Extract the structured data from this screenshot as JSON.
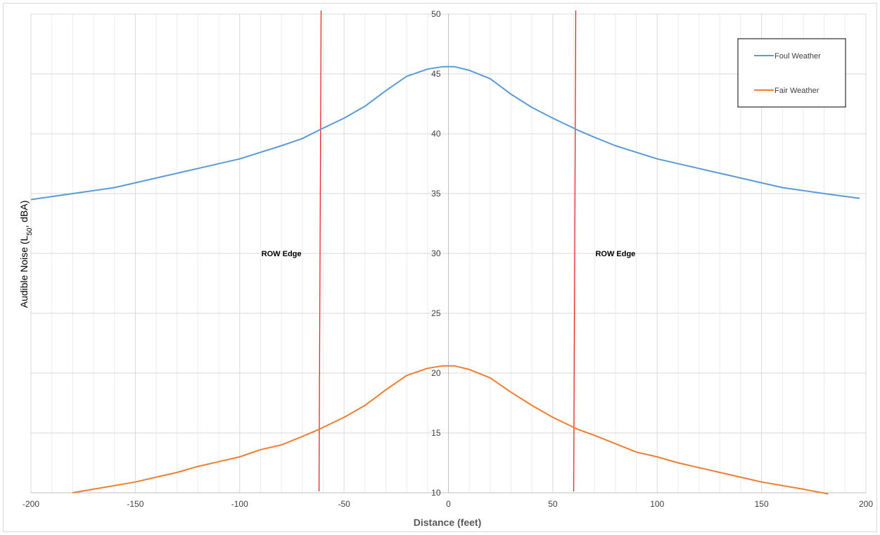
{
  "chart_data": {
    "type": "line",
    "title": "",
    "xlabel": "Distance (feet)",
    "ylabel": "Audible Noise (L50, dBA)",
    "ylabel_parts": {
      "main": "Audible Noise (L",
      "sub": "50",
      "tail": ", dBA)"
    },
    "xlim": [
      -200,
      200
    ],
    "ylim": [
      10,
      50
    ],
    "x_ticks": [
      -200,
      -150,
      -100,
      -50,
      0,
      50,
      100,
      150,
      200
    ],
    "x_tick_labels": [
      "-200",
      "-150",
      "-100",
      "-50",
      "0",
      "50",
      "100",
      "150",
      "200"
    ],
    "y_ticks": [
      10,
      15,
      20,
      25,
      30,
      35,
      40,
      45,
      50
    ],
    "y_tick_labels": [
      "10",
      "15",
      "20",
      "25",
      "30",
      "35",
      "40",
      "45",
      "50"
    ],
    "grid": true,
    "legend_position": "top-right",
    "series": [
      {
        "name": "Foul Weather",
        "color": "#5b9bd5",
        "x": [
          -200,
          -180,
          -160,
          -140,
          -120,
          -100,
          -80,
          -70,
          -62,
          -50,
          -40,
          -30,
          -20,
          -10,
          -3,
          0,
          3,
          10,
          20,
          30,
          40,
          50,
          62,
          70,
          80,
          100,
          120,
          140,
          160,
          180,
          197
        ],
        "y": [
          34.5,
          35.0,
          35.5,
          36.3,
          37.1,
          37.9,
          39.0,
          39.6,
          40.3,
          41.3,
          42.3,
          43.6,
          44.8,
          45.4,
          45.6,
          45.6,
          45.6,
          45.3,
          44.6,
          43.3,
          42.2,
          41.3,
          40.3,
          39.7,
          39.0,
          37.9,
          37.1,
          36.3,
          35.5,
          35.0,
          34.6
        ]
      },
      {
        "name": "Fair Weather",
        "color": "#ed7d31",
        "x": [
          -180,
          -170,
          -160,
          -150,
          -140,
          -130,
          -120,
          -110,
          -100,
          -90,
          -80,
          -70,
          -62,
          -50,
          -40,
          -30,
          -20,
          -10,
          -3,
          0,
          3,
          10,
          20,
          30,
          40,
          50,
          62,
          70,
          80,
          90,
          100,
          110,
          120,
          130,
          140,
          150,
          160,
          170,
          182
        ],
        "y": [
          10.0,
          10.3,
          10.6,
          10.9,
          11.3,
          11.7,
          12.2,
          12.6,
          13.0,
          13.6,
          14.0,
          14.7,
          15.3,
          16.3,
          17.3,
          18.6,
          19.8,
          20.4,
          20.6,
          20.6,
          20.6,
          20.3,
          19.6,
          18.4,
          17.3,
          16.3,
          15.3,
          14.8,
          14.1,
          13.4,
          13.0,
          12.5,
          12.1,
          11.7,
          11.3,
          10.9,
          10.6,
          10.3,
          9.9
        ]
      }
    ],
    "annotations": [
      {
        "text": "ROW Edge",
        "x": -80,
        "y": 30
      },
      {
        "text": "ROW Edge",
        "x": 80,
        "y": 30
      }
    ],
    "row_edge_lines": [
      {
        "x1": -61,
        "x2": -62,
        "color": "#e8262a"
      },
      {
        "x1": 61,
        "x2": 60,
        "color": "#e8262a"
      }
    ]
  }
}
